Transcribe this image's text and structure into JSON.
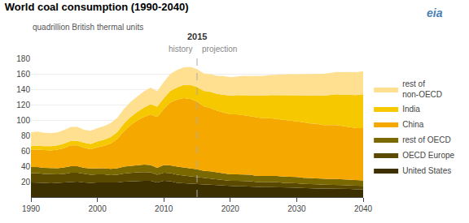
{
  "chart_data": {
    "type": "area",
    "stacked": true,
    "title": "World coal consumption (1990-2040)",
    "subtitle": "quadrillion British thermal units",
    "logo": "eia",
    "divider": {
      "x": 2015,
      "label": "2015",
      "before": "history",
      "after": "projection"
    },
    "x": [
      1990,
      1991,
      1992,
      1993,
      1994,
      1995,
      1996,
      1997,
      1998,
      1999,
      2000,
      2001,
      2002,
      2003,
      2004,
      2005,
      2006,
      2007,
      2008,
      2009,
      2010,
      2011,
      2012,
      2013,
      2014,
      2015,
      2016,
      2017,
      2018,
      2019,
      2020,
      2021,
      2022,
      2023,
      2024,
      2025,
      2026,
      2027,
      2028,
      2029,
      2030,
      2031,
      2032,
      2033,
      2034,
      2035,
      2036,
      2037,
      2038,
      2039,
      2040
    ],
    "series": [
      {
        "name": "United States",
        "color": "#3d3000",
        "values": [
          19,
          19,
          18.5,
          18,
          18.5,
          19,
          19.5,
          20,
          19,
          18.5,
          19,
          19,
          18.5,
          19,
          20,
          20.5,
          21,
          21,
          21,
          19,
          21,
          20.5,
          18.5,
          18,
          17.5,
          17,
          16,
          15.5,
          15,
          14.5,
          14,
          14,
          14,
          13.5,
          13,
          13,
          13,
          13,
          12.5,
          12.5,
          12,
          11.5,
          11.5,
          11,
          11,
          11,
          11,
          10.5,
          10.5,
          10,
          10
        ]
      },
      {
        "name": "OECD Europe",
        "color": "#5a4a00",
        "values": [
          12,
          12,
          11.5,
          11.5,
          11,
          11,
          12,
          11.5,
          11,
          10.5,
          10.5,
          10.5,
          10,
          10,
          10.5,
          11,
          11,
          11.5,
          11,
          10,
          10.5,
          10.5,
          10.5,
          10,
          9.5,
          9,
          8.5,
          8.5,
          8,
          7.5,
          7,
          7,
          7,
          7,
          6.5,
          6.5,
          6.5,
          6.5,
          6,
          6,
          6,
          5.5,
          5.5,
          5.5,
          5,
          5,
          5,
          5,
          4.5,
          4.5,
          4.5
        ]
      },
      {
        "name": "rest of OECD",
        "color": "#7a6800",
        "values": [
          8,
          8,
          8,
          8,
          8,
          8.5,
          8.5,
          8.5,
          8,
          8,
          8,
          8,
          8,
          8.5,
          9,
          9,
          9.5,
          9.5,
          9.5,
          9,
          10,
          10,
          10.5,
          10.5,
          10.5,
          10,
          9.5,
          9.5,
          9,
          9,
          8.5,
          8.5,
          8.5,
          8.5,
          8,
          8,
          8,
          8,
          8,
          8,
          8,
          8,
          7.5,
          7.5,
          7.5,
          7.5,
          7.5,
          7.5,
          7,
          7,
          7
        ]
      },
      {
        "name": "China",
        "color": "#f5a800",
        "values": [
          22,
          22.5,
          23,
          23,
          24,
          25,
          27,
          27,
          26,
          25,
          27,
          29,
          33,
          38,
          46,
          53,
          58,
          62,
          66,
          66,
          73,
          82,
          87,
          90,
          90,
          88,
          84,
          82,
          80,
          79,
          78,
          78,
          77,
          76,
          76,
          75,
          75,
          74,
          74,
          73,
          72,
          72,
          71,
          71,
          70,
          70,
          70,
          69,
          69,
          68,
          68
        ]
      },
      {
        "name": "India",
        "color": "#f5c800",
        "values": [
          5,
          5,
          5,
          5.5,
          5.5,
          6,
          6,
          6,
          6.5,
          7,
          7.5,
          8,
          8.5,
          9,
          10,
          10.5,
          11,
          12,
          13,
          13.5,
          14,
          15,
          16,
          17,
          18,
          19,
          20,
          21,
          22,
          23,
          24,
          25,
          26,
          27,
          28,
          29,
          30,
          31,
          32,
          33,
          34,
          35,
          36,
          37,
          38,
          39,
          40,
          41,
          42,
          43,
          44
        ]
      },
      {
        "name": "rest of\nnon-OECD",
        "color": "#ffe090",
        "values": [
          18,
          18.5,
          17.5,
          17,
          17,
          17.5,
          18,
          18,
          17,
          17,
          17.5,
          17.5,
          18,
          18.5,
          19,
          19.5,
          20,
          21,
          21.5,
          20,
          21,
          22,
          22.5,
          23,
          23.5,
          23,
          22.5,
          23,
          23.5,
          24,
          24,
          24,
          25,
          25,
          25.5,
          26,
          26,
          26.5,
          27,
          27,
          27.5,
          27.5,
          28,
          28,
          28.5,
          28.5,
          29,
          29,
          29.5,
          29.5,
          30
        ]
      }
    ],
    "xlim": [
      1990,
      2040
    ],
    "xticks": [
      1990,
      2000,
      2010,
      2020,
      2030,
      2040
    ],
    "ylim": [
      0,
      180
    ],
    "yticks": [
      20,
      40,
      60,
      80,
      100,
      120,
      140,
      160,
      180
    ],
    "grid": true,
    "legend": "right"
  }
}
